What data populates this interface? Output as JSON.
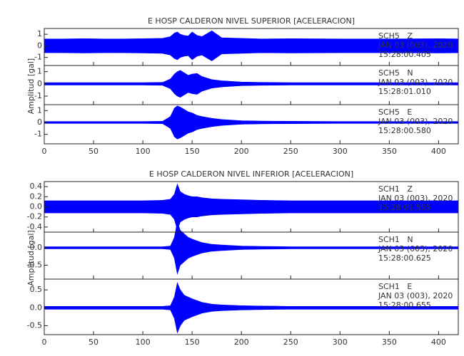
{
  "chart_data": [
    {
      "type": "seismogram",
      "title": "E HOSP CALDERON NIVEL SUPERIOR [ACELERACION]",
      "ylabel": "Amplitud [gal]",
      "color": "#0000ff",
      "xlim": [
        0,
        420
      ],
      "xticks": [
        0,
        50,
        100,
        150,
        200,
        250,
        300,
        350,
        400
      ],
      "x": [
        0,
        20,
        40,
        60,
        80,
        100,
        120,
        128,
        132,
        135,
        138,
        142,
        146,
        150,
        155,
        160,
        170,
        180,
        200,
        220,
        250,
        300,
        350,
        400,
        420
      ],
      "subplots": [
        {
          "station": "SCH5   Z",
          "date": "JAN 03 (003), 2020",
          "time": "15:28:00.405",
          "ylim": [
            -1.7,
            1.5
          ],
          "yticks": [
            -1,
            0,
            1
          ],
          "values": [
            0.6,
            0.6,
            0.62,
            0.6,
            0.6,
            0.62,
            0.65,
            0.8,
            1.1,
            1.2,
            1.0,
            0.9,
            0.85,
            1.2,
            0.9,
            0.8,
            1.3,
            0.7,
            0.65,
            0.6,
            0.62,
            0.6,
            0.6,
            0.62,
            0.6
          ]
        },
        {
          "station": "SCH5   N",
          "date": "JAN 03 (003), 2020",
          "time": "15:28:01.010",
          "ylim": [
            -1.7,
            1.5
          ],
          "yticks": [
            -1,
            0,
            1
          ],
          "values": [
            0.1,
            0.1,
            0.1,
            0.1,
            0.1,
            0.1,
            0.12,
            0.4,
            0.8,
            1.0,
            1.1,
            0.9,
            0.7,
            0.8,
            0.85,
            0.6,
            0.35,
            0.25,
            0.15,
            0.12,
            0.1,
            0.1,
            0.1,
            0.1,
            0.1
          ]
        },
        {
          "station": "SCH5   E",
          "date": "JAN 03 (003), 2020",
          "time": "15:28:00.580",
          "ylim": [
            -1.8,
            1.5
          ],
          "yticks": [
            -1,
            0,
            1
          ],
          "values": [
            0.08,
            0.08,
            0.08,
            0.08,
            0.08,
            0.08,
            0.1,
            0.5,
            1.2,
            1.4,
            1.3,
            1.1,
            0.9,
            0.8,
            0.6,
            0.5,
            0.35,
            0.25,
            0.15,
            0.12,
            0.1,
            0.08,
            0.08,
            0.08,
            0.08
          ]
        }
      ]
    },
    {
      "type": "seismogram",
      "title": "E HOSP CALDERON NIVEL INFERIOR [ACELERACION]",
      "ylabel": "Amplitud [gal]",
      "color": "#0000ff",
      "xlim": [
        0,
        420
      ],
      "xticks": [
        0,
        50,
        100,
        150,
        200,
        250,
        300,
        350,
        400
      ],
      "x": [
        0,
        20,
        40,
        60,
        80,
        100,
        120,
        128,
        132,
        135,
        138,
        142,
        146,
        150,
        155,
        160,
        170,
        180,
        200,
        220,
        250,
        300,
        350,
        400,
        420
      ],
      "subplots": [
        {
          "station": "SCH1   Z",
          "date": "JAN 03 (003), 2020",
          "time": "15:28:01.555",
          "ylim": [
            -0.5,
            0.5
          ],
          "yticks": [
            -0.4,
            -0.2,
            {
              "value": 0,
              "label": "0.0"
            },
            0.2,
            0.4
          ],
          "values": [
            0.12,
            0.12,
            0.12,
            0.12,
            0.12,
            0.12,
            0.13,
            0.15,
            0.25,
            0.45,
            0.3,
            0.25,
            0.22,
            0.2,
            0.2,
            0.18,
            0.16,
            0.15,
            0.14,
            0.13,
            0.12,
            0.12,
            0.12,
            0.12,
            0.12
          ]
        },
        {
          "station": "SCH1   N",
          "date": "JAN 03 (003), 2020",
          "time": "15:28:00.625",
          "ylim": [
            -0.9,
            0.45
          ],
          "yticks": [
            -0.5,
            {
              "value": 0,
              "label": "0.0"
            }
          ],
          "values": [
            0.03,
            0.03,
            0.03,
            0.03,
            0.03,
            0.03,
            0.03,
            0.05,
            0.3,
            0.75,
            0.5,
            0.4,
            0.3,
            0.25,
            0.2,
            0.15,
            0.1,
            0.08,
            0.05,
            0.04,
            0.03,
            0.03,
            0.03,
            0.03,
            0.03
          ]
        },
        {
          "station": "SCH1   E",
          "date": "JAN 03 (003), 2020",
          "time": "15:28:00.655",
          "ylim": [
            -0.75,
            0.8
          ],
          "yticks": [
            -0.5,
            {
              "value": 0,
              "label": "0.0"
            },
            0.5
          ],
          "values": [
            0.04,
            0.04,
            0.04,
            0.04,
            0.04,
            0.04,
            0.04,
            0.06,
            0.3,
            0.7,
            0.5,
            0.35,
            0.3,
            0.25,
            0.2,
            0.15,
            0.1,
            0.08,
            0.06,
            0.05,
            0.04,
            0.04,
            0.04,
            0.04,
            0.04
          ]
        }
      ]
    }
  ]
}
